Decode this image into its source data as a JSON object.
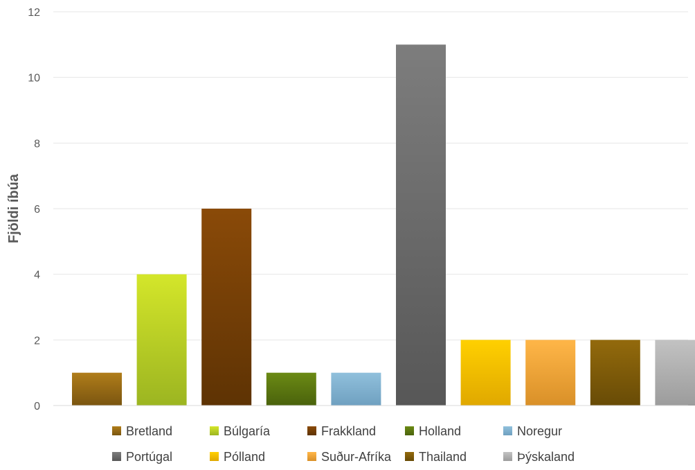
{
  "chart_data": {
    "type": "bar",
    "title": "",
    "xlabel": "",
    "ylabel": "Fjöldi íbúa",
    "ylim": [
      0,
      12
    ],
    "yticks": [
      "0",
      "2",
      "4",
      "6",
      "8",
      "10",
      "12"
    ],
    "grid": true,
    "legend_position": "bottom",
    "categories": [
      "Bretland",
      "Búlgaría",
      "Frakkland",
      "Holland",
      "Noregur",
      "Portúgal",
      "Pólland",
      "Suður-Afríka",
      "Thailand",
      "Þýskaland"
    ],
    "values": [
      1,
      4,
      6,
      1,
      1,
      11,
      2,
      2,
      2,
      2
    ],
    "colors": [
      [
        "#b07d1a",
        "#7a5510"
      ],
      [
        "#d4e62a",
        "#9cb521"
      ],
      [
        "#8a4a08",
        "#5e3304"
      ],
      [
        "#6b8a14",
        "#4a620c"
      ],
      [
        "#90c0dc",
        "#6fa0c0"
      ],
      [
        "#7d7d7d",
        "#575757"
      ],
      [
        "#ffd000",
        "#e0a800"
      ],
      [
        "#ffb648",
        "#d99028"
      ],
      [
        "#936a0c",
        "#684b06"
      ],
      [
        "#c2c2c2",
        "#9c9c9c"
      ]
    ]
  }
}
